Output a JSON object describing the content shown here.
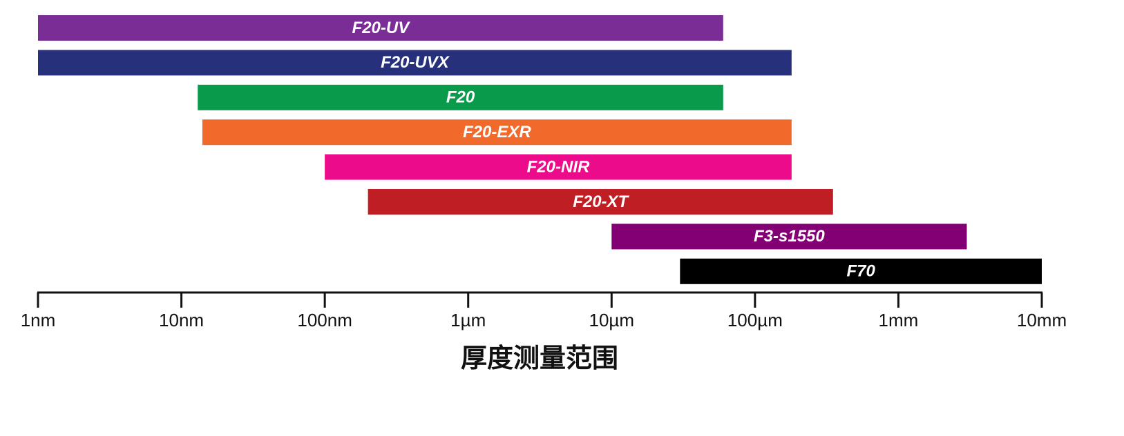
{
  "chart_data": {
    "type": "range-bar",
    "categories": [
      "F20-UV",
      "F20-UVX",
      "F20",
      "F20-EXR",
      "F20-NIR",
      "F20-XT",
      "F3-s1550",
      "F70"
    ],
    "start": [
      1,
      1,
      13,
      14,
      100,
      200,
      10000,
      30000
    ],
    "end": [
      60000,
      180000,
      60000,
      180000,
      180000,
      350000,
      3000000,
      10000000
    ],
    "colors": [
      "#7b2d96",
      "#27307a",
      "#0a9a4c",
      "#f26a2b",
      "#ec0b8b",
      "#bf1e24",
      "#820074",
      "#000000"
    ],
    "xscale": "log",
    "xlim": [
      1,
      10000000
    ],
    "xticks": [
      {
        "value": 1,
        "label": "1nm"
      },
      {
        "value": 10,
        "label": "10nm"
      },
      {
        "value": 100,
        "label": "100nm"
      },
      {
        "value": 1000,
        "label": "1µm"
      },
      {
        "value": 10000,
        "label": "10µm"
      },
      {
        "value": 100000,
        "label": "100µm"
      },
      {
        "value": 1000000,
        "label": "1mm"
      },
      {
        "value": 10000000,
        "label": "10mm"
      }
    ],
    "xlabel": "厚度测量范围"
  }
}
